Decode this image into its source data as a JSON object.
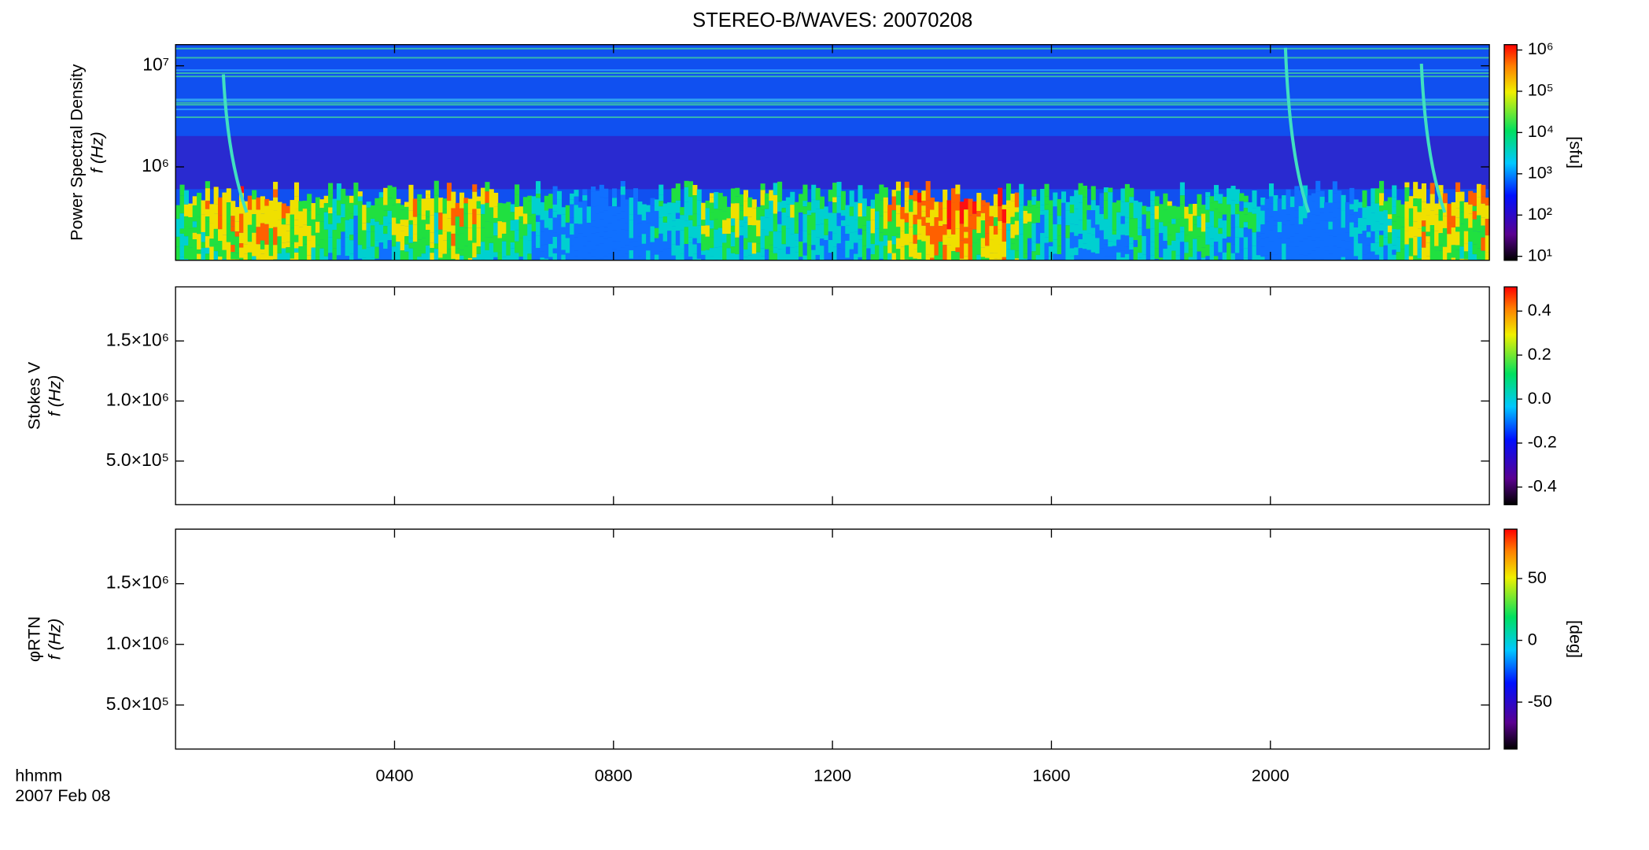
{
  "chart_data": [
    {
      "type": "heatmap",
      "title": "STEREO-B/WAVES: 20070208",
      "ylabel": [
        "Power Spectral Density",
        "f (Hz)"
      ],
      "yscale": "log",
      "ylim": [
        119000,
        16200000
      ],
      "yticks": [
        {
          "value": 1000000,
          "label": "10⁶"
        },
        {
          "value": 10000000,
          "label": "10⁷"
        }
      ],
      "colorbar": {
        "scale": "log",
        "lim": [
          8,
          1350000
        ],
        "label": "[sfu]",
        "ticks": [
          {
            "value": 10,
            "label": "10¹"
          },
          {
            "value": 100,
            "label": "10²"
          },
          {
            "value": 1000,
            "label": "10³"
          },
          {
            "value": 10000,
            "label": "10⁴"
          },
          {
            "value": 100000,
            "label": "10⁵"
          },
          {
            "value": 1000000,
            "label": "10⁶"
          }
        ]
      }
    },
    {
      "type": "heatmap",
      "ylabel": [
        "Stokes V",
        "f (Hz)"
      ],
      "yscale": "linear",
      "ylim": [
        137000,
        1950000
      ],
      "yticks": [
        {
          "value": 500000,
          "label": "5.0×10⁵"
        },
        {
          "value": 1000000,
          "label": "1.0×10⁶"
        },
        {
          "value": 1500000,
          "label": "1.5×10⁶"
        }
      ],
      "colorbar": {
        "scale": "linear",
        "lim": [
          -0.48,
          0.51
        ],
        "ticks": [
          {
            "value": -0.4,
            "label": "-0.4"
          },
          {
            "value": -0.2,
            "label": "-0.2"
          },
          {
            "value": 0,
            "label": "0.0"
          },
          {
            "value": 0.2,
            "label": "0.2"
          },
          {
            "value": 0.4,
            "label": "0.4"
          }
        ]
      }
    },
    {
      "type": "heatmap",
      "ylabel": [
        "φRTN",
        "f (Hz)"
      ],
      "yscale": "linear",
      "ylim": [
        137000,
        1950000
      ],
      "yticks": [
        {
          "value": 500000,
          "label": "5.0×10⁵"
        },
        {
          "value": 1000000,
          "label": "1.0×10⁶"
        },
        {
          "value": 1500000,
          "label": "1.5×10⁶"
        }
      ],
      "colorbar": {
        "scale": "linear",
        "lim": [
          -88,
          90
        ],
        "label": "[deg]",
        "ticks": [
          -50,
          0,
          50
        ]
      },
      "xlabel": "hhmm",
      "date": "2007 Feb 08",
      "xlim": [
        0,
        24
      ],
      "xticks": [
        {
          "value": 4,
          "label": "0400"
        },
        {
          "value": 8,
          "label": "0800"
        },
        {
          "value": 12,
          "label": "1200"
        },
        {
          "value": 16,
          "label": "1600"
        },
        {
          "value": 20,
          "label": "2000"
        }
      ]
    }
  ]
}
